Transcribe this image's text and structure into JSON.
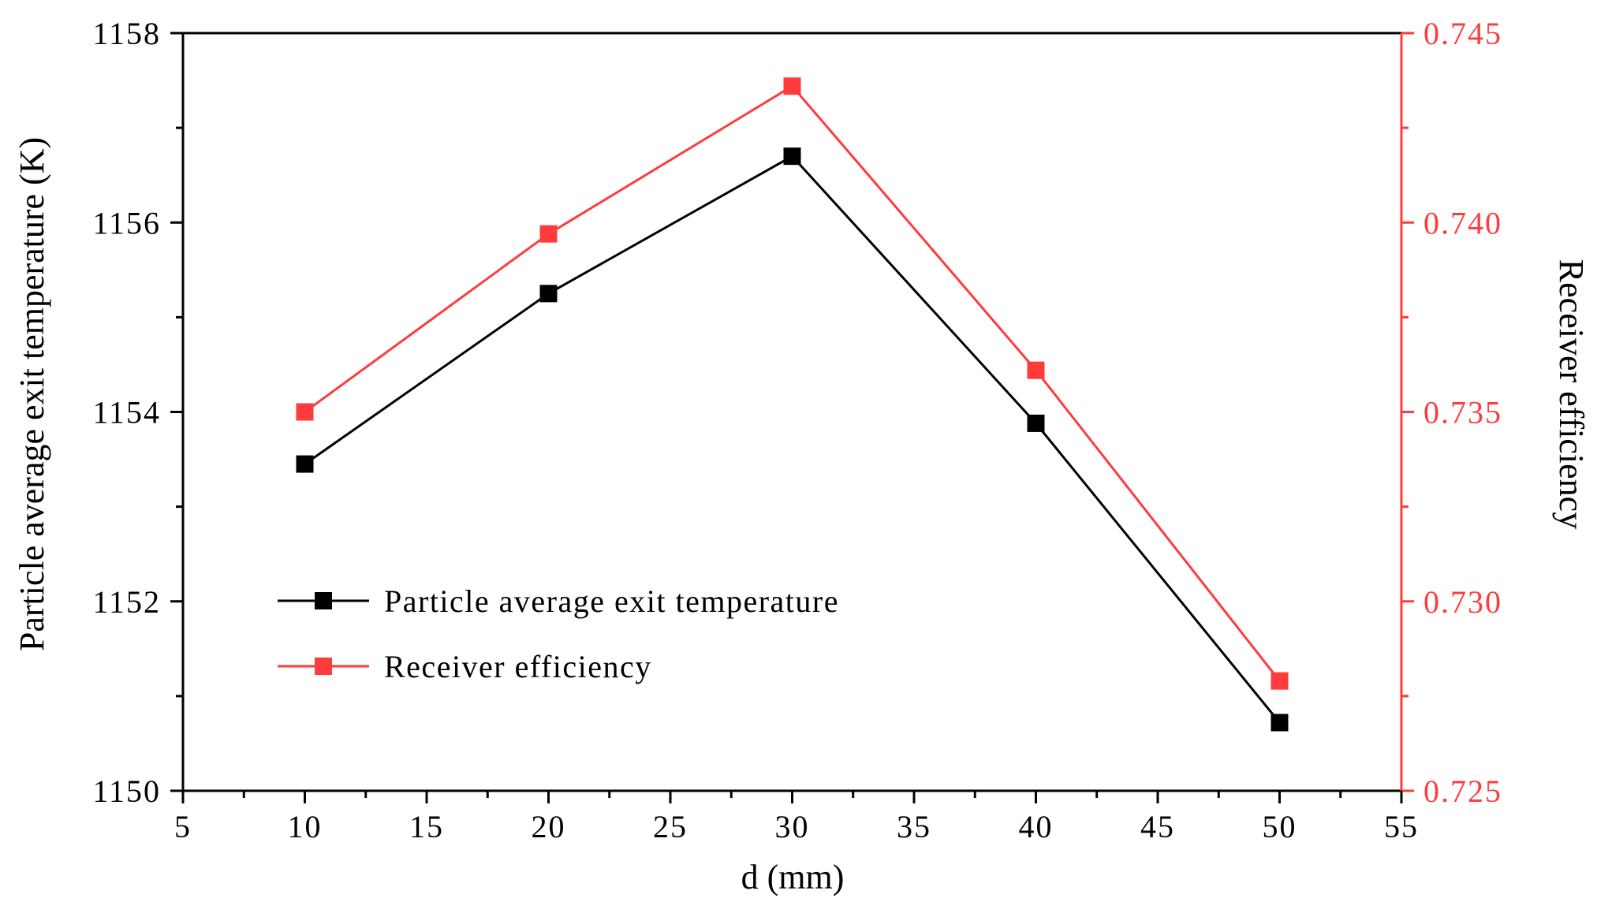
{
  "chart_data": {
    "type": "line",
    "xlabel": "d (mm)",
    "ylabel_left": "Particle average exit temperature (K)",
    "ylabel_right": "Receiver efficiency",
    "xlim": [
      5,
      55
    ],
    "xticks": [
      5,
      10,
      15,
      20,
      25,
      30,
      35,
      40,
      45,
      50,
      55
    ],
    "ylim_left": [
      1150,
      1158
    ],
    "yticks_left": [
      1150,
      1152,
      1154,
      1156,
      1158
    ],
    "ylim_right": [
      0.725,
      0.745
    ],
    "yticks_right": [
      "0.725",
      "0.730",
      "0.735",
      "0.740",
      "0.745"
    ],
    "x": [
      10,
      20,
      30,
      40,
      50
    ],
    "series": [
      {
        "name": "Particle average exit temperature",
        "axis": "left",
        "color": "#000000",
        "marker": "square",
        "values": [
          1153.45,
          1155.25,
          1156.7,
          1153.88,
          1150.72
        ]
      },
      {
        "name": "Receiver efficiency",
        "axis": "right",
        "color": "#ff3b3b",
        "marker": "square",
        "values": [
          0.735,
          0.7397,
          0.7436,
          0.7361,
          0.7279
        ]
      }
    ],
    "legend_position": "lower-left",
    "right_axis_color": "#ff3b3b"
  }
}
